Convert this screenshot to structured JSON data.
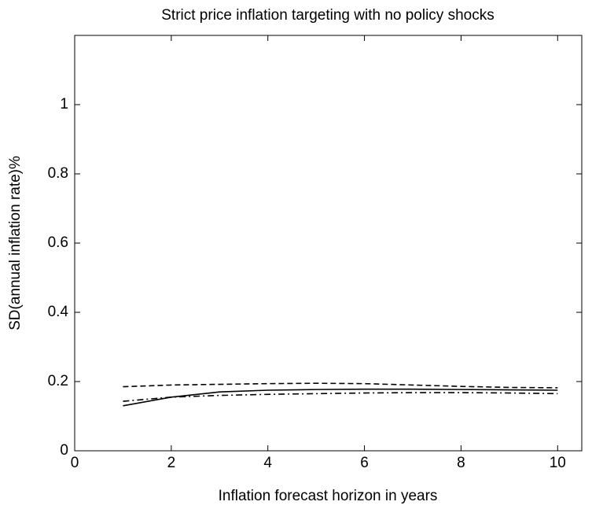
{
  "chart_data": {
    "type": "line",
    "title": "Strict price inflation targeting with no policy shocks",
    "xlabel": "Inflation forecast horizon in years",
    "ylabel": "SD(annual inflation rate)%",
    "x": [
      1,
      2,
      3,
      4,
      5,
      6,
      7,
      8,
      9,
      10
    ],
    "series": [
      {
        "color": "#000000",
        "dash": "solid",
        "values": [
          0.13,
          0.155,
          0.17,
          0.175,
          0.177,
          0.178,
          0.178,
          0.177,
          0.176,
          0.175
        ]
      },
      {
        "color": "#000000",
        "dash": "dashed",
        "values": [
          0.185,
          0.19,
          0.192,
          0.194,
          0.195,
          0.194,
          0.19,
          0.186,
          0.183,
          0.182
        ]
      },
      {
        "color": "#000000",
        "dash": "dashdot",
        "values": [
          0.143,
          0.155,
          0.16,
          0.163,
          0.165,
          0.167,
          0.168,
          0.168,
          0.167,
          0.165
        ]
      }
    ],
    "xlim": [
      0,
      10.5
    ],
    "xticks": [
      0,
      2,
      4,
      6,
      8,
      10
    ],
    "ylim": [
      0,
      1.2
    ],
    "yticks": [
      0,
      0.2,
      0.4,
      0.6,
      0.8,
      1
    ],
    "grid": false
  }
}
